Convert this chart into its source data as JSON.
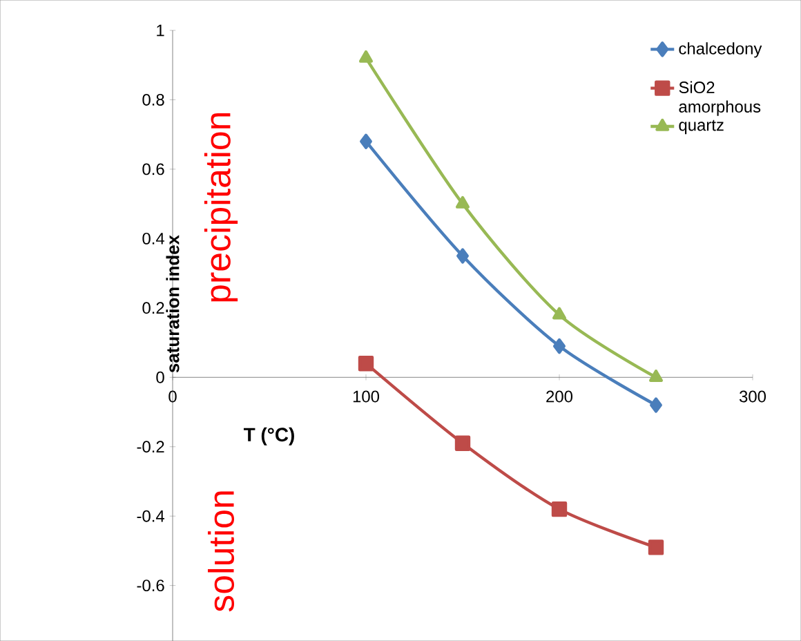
{
  "chart_data": {
    "type": "line",
    "xlabel": "T (°C)",
    "ylabel": "saturation index",
    "x": [
      100,
      150,
      200,
      250
    ],
    "series": [
      {
        "name": "chalcedony",
        "color": "#4a7ebb",
        "marker": "diamond",
        "values": [
          0.68,
          0.35,
          0.09,
          -0.08
        ]
      },
      {
        "name": "SiO2 amorphous",
        "color": "#be4b48",
        "marker": "square",
        "values": [
          0.04,
          -0.19,
          -0.38,
          -0.49
        ]
      },
      {
        "name": "quartz",
        "color": "#98b954",
        "marker": "triangle",
        "values": [
          0.92,
          0.5,
          0.18,
          0.0
        ]
      }
    ],
    "xlim": [
      0,
      300
    ],
    "xticks": [
      0,
      100,
      200,
      300
    ],
    "ylim": [
      -0.76,
      1
    ],
    "yticks": [
      -0.6,
      -0.4,
      -0.2,
      0,
      0.2,
      0.4,
      0.6,
      0.8,
      1
    ],
    "annotations": [
      "precipitation",
      "solution"
    ],
    "grid": false,
    "legend": "top right",
    "line_style": "solid"
  }
}
